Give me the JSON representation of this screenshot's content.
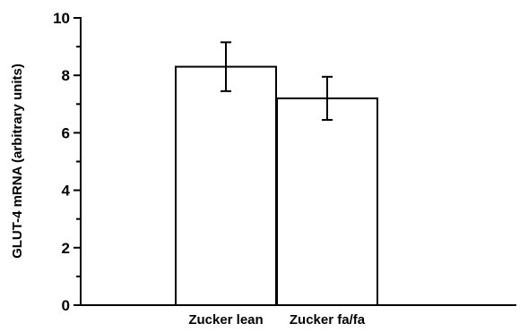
{
  "chart_data": {
    "type": "bar",
    "categories": [
      "Zucker lean",
      "Zucker fa/fa"
    ],
    "values": [
      8.3,
      7.2
    ],
    "errors": [
      0.85,
      0.75
    ],
    "ylabel": "GLUT-4 mRNA (arbitrary units)",
    "xlabel": "",
    "ylim": [
      0,
      10
    ],
    "yticks": [
      0,
      2,
      4,
      6,
      8,
      10
    ],
    "colors": {
      "bar_fill": "#ffffff",
      "stroke": "#000000"
    }
  }
}
